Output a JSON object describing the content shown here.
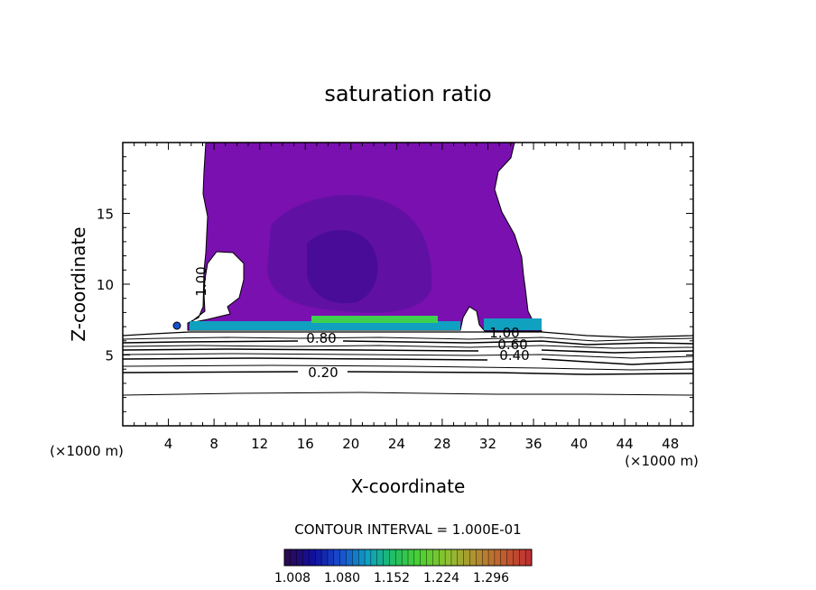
{
  "chart_data": {
    "type": "contour",
    "title": "saturation ratio",
    "xlabel": "X-coordinate",
    "ylabel": "Z-coordinate",
    "x_unit_left": "(×1000 m)",
    "x_unit_right": "(×1000 m)",
    "xlim": [
      0,
      50
    ],
    "ylim": [
      0,
      20
    ],
    "x_ticks": [
      4,
      8,
      12,
      16,
      20,
      24,
      28,
      32,
      36,
      40,
      44,
      48
    ],
    "x_tick_labels": [
      "4",
      "8",
      "12",
      "16",
      "20",
      "24",
      "28",
      "32",
      "36",
      "40",
      "44",
      "48"
    ],
    "y_ticks": [
      5,
      10,
      15
    ],
    "y_tick_labels": [
      "5",
      "10",
      "15"
    ],
    "contour_interval_text": "CONTOUR INTERVAL = 1.000E-01",
    "contour_lines": [
      {
        "level": "0.20",
        "z_mean": 3.9
      },
      {
        "level": "0.40",
        "z_mean": 4.9
      },
      {
        "level": "0.60",
        "z_mean": 5.6
      },
      {
        "level": "0.80",
        "z_mean": 6.1
      },
      {
        "level": "1.00",
        "z_mean": 6.4
      }
    ],
    "colorbar": {
      "tick_labels": [
        "1.008",
        "1.080",
        "1.152",
        "1.224",
        "1.296"
      ],
      "colors": [
        "#2a0a55",
        "#1010a0",
        "#1850d0",
        "#10a0c0",
        "#20c060",
        "#50d030",
        "#90c030",
        "#b09030",
        "#c06030",
        "#c03030"
      ]
    },
    "shaded_region_color": "#7a10b0"
  }
}
